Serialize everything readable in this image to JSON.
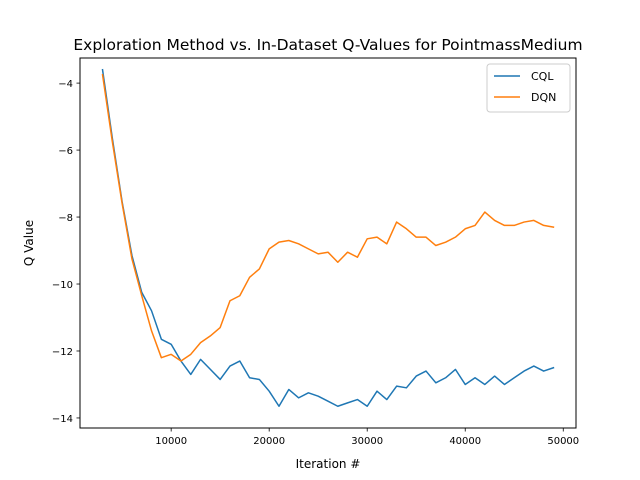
{
  "chart_data": {
    "type": "line",
    "title": "Exploration Method vs. In-Dataset Q-Values for PointmassMedium",
    "xlabel": "Iteration #",
    "ylabel": "Q Value",
    "xlim": [
      700,
      51300
    ],
    "ylim": [
      -14.3,
      -3.25
    ],
    "xticks": [
      10000,
      20000,
      30000,
      40000,
      50000
    ],
    "xtick_labels": [
      "10000",
      "20000",
      "30000",
      "40000",
      "50000"
    ],
    "yticks": [
      -14,
      -12,
      -10,
      -8,
      -6,
      -4
    ],
    "ytick_labels": [
      "−14",
      "−12",
      "−10",
      "−8",
      "−6",
      "−4"
    ],
    "grid": false,
    "legend_position": "top-right",
    "x": [
      3000,
      4000,
      5000,
      6000,
      7000,
      8000,
      9000,
      10000,
      11000,
      12000,
      13000,
      14000,
      15000,
      16000,
      17000,
      18000,
      19000,
      20000,
      21000,
      22000,
      23000,
      24000,
      25000,
      26000,
      27000,
      28000,
      29000,
      30000,
      31000,
      32000,
      33000,
      34000,
      35000,
      36000,
      37000,
      38000,
      39000,
      40000,
      41000,
      42000,
      43000,
      44000,
      45000,
      46000,
      47000,
      48000,
      49000
    ],
    "series": [
      {
        "name": "CQL",
        "color": "#1f77b4",
        "values": [
          -3.6,
          -5.65,
          -7.55,
          -9.15,
          -10.25,
          -10.8,
          -11.65,
          -11.8,
          -12.3,
          -12.7,
          -12.25,
          -12.55,
          -12.85,
          -12.45,
          -12.3,
          -12.8,
          -12.85,
          -13.2,
          -13.65,
          -13.15,
          -13.4,
          -13.25,
          -13.35,
          -13.5,
          -13.65,
          -13.55,
          -13.45,
          -13.65,
          -13.2,
          -13.45,
          -13.05,
          -13.1,
          -12.75,
          -12.6,
          -12.95,
          -12.8,
          -12.55,
          -13.0,
          -12.8,
          -13.0,
          -12.75,
          -13.0,
          -12.8,
          -12.6,
          -12.45,
          -12.6,
          -12.5
        ]
      },
      {
        "name": "DQN",
        "color": "#ff7f0e",
        "values": [
          -3.75,
          -5.75,
          -7.6,
          -9.25,
          -10.35,
          -11.4,
          -12.2,
          -12.1,
          -12.3,
          -12.1,
          -11.75,
          -11.55,
          -11.3,
          -10.5,
          -10.35,
          -9.8,
          -9.55,
          -8.95,
          -8.75,
          -8.7,
          -8.8,
          -8.95,
          -9.1,
          -9.05,
          -9.35,
          -9.05,
          -9.2,
          -8.65,
          -8.6,
          -8.8,
          -8.15,
          -8.35,
          -8.6,
          -8.6,
          -8.85,
          -8.75,
          -8.6,
          -8.35,
          -8.25,
          -7.85,
          -8.1,
          -8.25,
          -8.25,
          -8.15,
          -8.1,
          -8.25,
          -8.3
        ]
      }
    ]
  }
}
